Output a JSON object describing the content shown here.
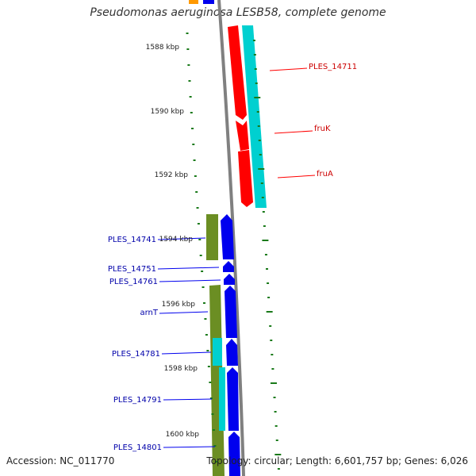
{
  "title": "Pseudomonas aeruginosa LESB58, complete genome",
  "footer": {
    "accession": "Accession: NC_011770",
    "topology": "Topology: circular; Length: 6,601,757 bp; Genes: 6,026"
  },
  "colors": {
    "tick": "#1a7a1a",
    "backbone": "#808080",
    "red": "#ff0000",
    "cyan": "#00d0d0",
    "blue": "#0000ee",
    "olive": "#6b8e23",
    "orange": "#ff9900",
    "red_label": "#cc0000",
    "blue_label": "#0000aa"
  },
  "scale_labels": [
    "1588 kbp",
    "1590 kbp",
    "1592 kbp",
    "1594 kbp",
    "1596 kbp",
    "1598 kbp",
    "1600 kbp"
  ],
  "gene_labels": [
    {
      "text": "PLES_14711",
      "color": "red"
    },
    {
      "text": "fruK",
      "color": "red"
    },
    {
      "text": "fruA",
      "color": "red"
    },
    {
      "text": "PLES_14741",
      "color": "blue"
    },
    {
      "text": "PLES_14751",
      "color": "blue"
    },
    {
      "text": "PLES_14761",
      "color": "blue"
    },
    {
      "text": "arnT",
      "color": "blue"
    },
    {
      "text": "PLES_14781",
      "color": "blue"
    },
    {
      "text": "PLES_14791",
      "color": "blue"
    },
    {
      "text": "PLES_14801",
      "color": "blue"
    }
  ]
}
